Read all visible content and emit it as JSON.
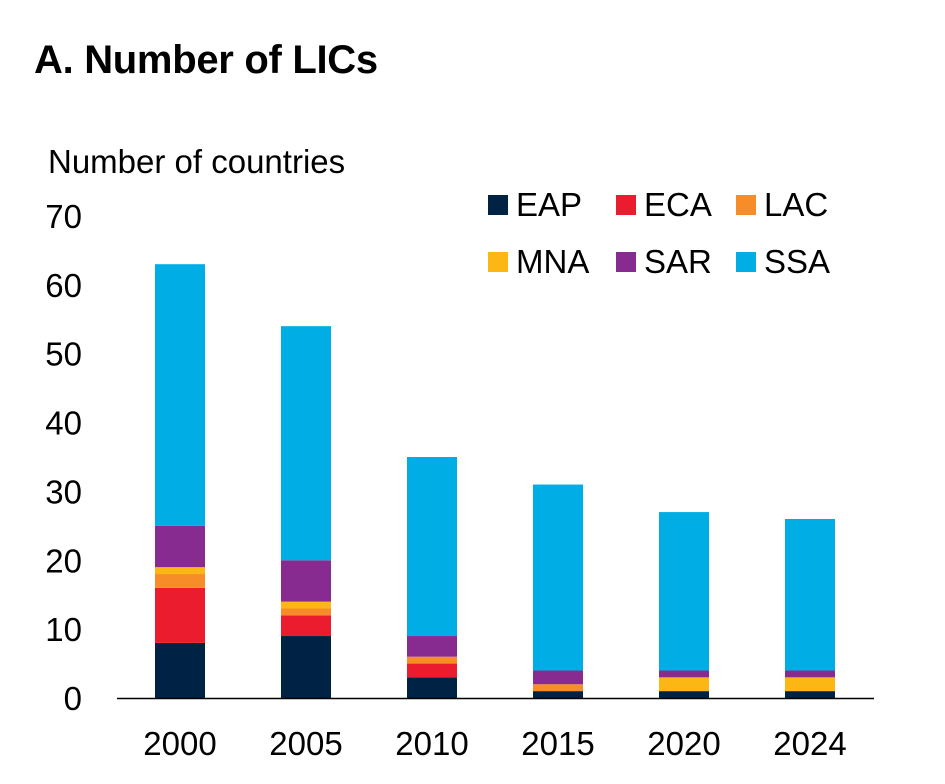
{
  "title": "A. Number of LICs",
  "chart_data": {
    "type": "bar",
    "stacked": true,
    "title": "A. Number of LICs",
    "ylabel": "Number of countries",
    "xlabel": "",
    "categories": [
      "2000",
      "2005",
      "2010",
      "2015",
      "2020",
      "2024"
    ],
    "ylim": [
      0,
      70
    ],
    "yticks": [
      0,
      10,
      20,
      30,
      40,
      50,
      60,
      70
    ],
    "legend_position": "top-right",
    "grid": false,
    "series": [
      {
        "name": "EAP",
        "color": "#002345",
        "values": [
          8,
          9,
          3,
          1,
          1,
          1
        ]
      },
      {
        "name": "ECA",
        "color": "#eb1c2d",
        "values": [
          8,
          3,
          2,
          0,
          0,
          0
        ]
      },
      {
        "name": "LAC",
        "color": "#f78d28",
        "values": [
          2,
          1,
          1,
          1,
          0,
          0
        ]
      },
      {
        "name": "MNA",
        "color": "#fdb714",
        "values": [
          1,
          1,
          0,
          0,
          2,
          2
        ]
      },
      {
        "name": "SAR",
        "color": "#872b90",
        "values": [
          6,
          6,
          3,
          2,
          1,
          1
        ]
      },
      {
        "name": "SSA",
        "color": "#00ade4",
        "values": [
          38,
          34,
          26,
          27,
          23,
          22
        ]
      }
    ]
  }
}
